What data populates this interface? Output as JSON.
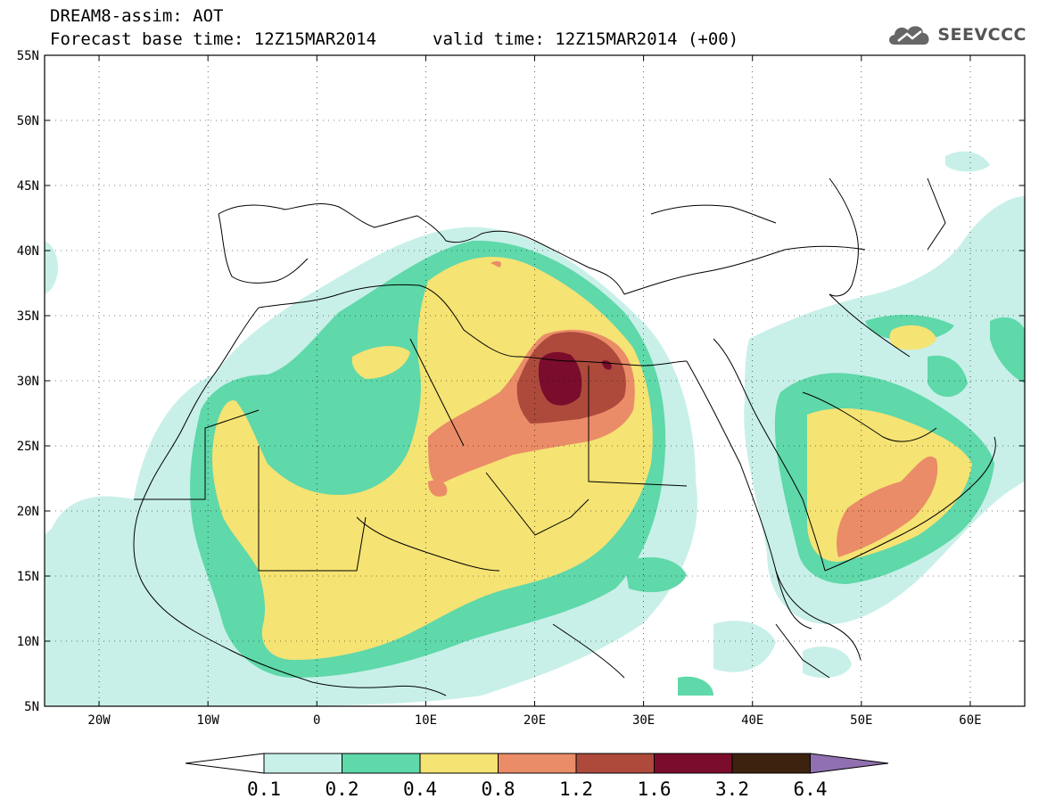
{
  "title": {
    "line1": "DREAM8-assim: AOT",
    "line2": "Forecast base time: 12Z15MAR2014",
    "valid": "valid time: 12Z15MAR2014 (+00)"
  },
  "brand": {
    "name": "SEEVCCC",
    "icon": "cloud-logo-icon"
  },
  "axes": {
    "lat_labels": [
      "55N",
      "50N",
      "45N",
      "40N",
      "35N",
      "30N",
      "25N",
      "20N",
      "15N",
      "10N",
      "5N"
    ],
    "lat_values": [
      55,
      50,
      45,
      40,
      35,
      30,
      25,
      20,
      15,
      10,
      5
    ],
    "lon_labels": [
      "20W",
      "10W",
      "0",
      "10E",
      "20E",
      "30E",
      "40E",
      "50E",
      "60E"
    ],
    "lon_values": [
      -20,
      -10,
      0,
      10,
      20,
      30,
      40,
      50,
      60
    ],
    "lon_range": [
      -25,
      65
    ],
    "lat_range": [
      5,
      55
    ],
    "grid": "dotted"
  },
  "colorbar": {
    "thresholds": [
      "0.1",
      "0.2",
      "0.4",
      "0.8",
      "1.2",
      "1.6",
      "3.2",
      "6.4"
    ],
    "colors": [
      "#c8f0e8",
      "#5fd8aa",
      "#f5e373",
      "#ea8c68",
      "#ad4a3c",
      "#7a0c2c",
      "#3d2210",
      "#9070b0"
    ],
    "under_color": "#ffffff"
  },
  "field": {
    "variable": "AOT",
    "description_colors": {
      "very_low": "#c8f0e8",
      "low": "#5fd8aa",
      "moderate": "#f5e373",
      "high": "#ea8c68",
      "very_high": "#ad4a3c",
      "extreme": "#7a0c2c"
    }
  }
}
